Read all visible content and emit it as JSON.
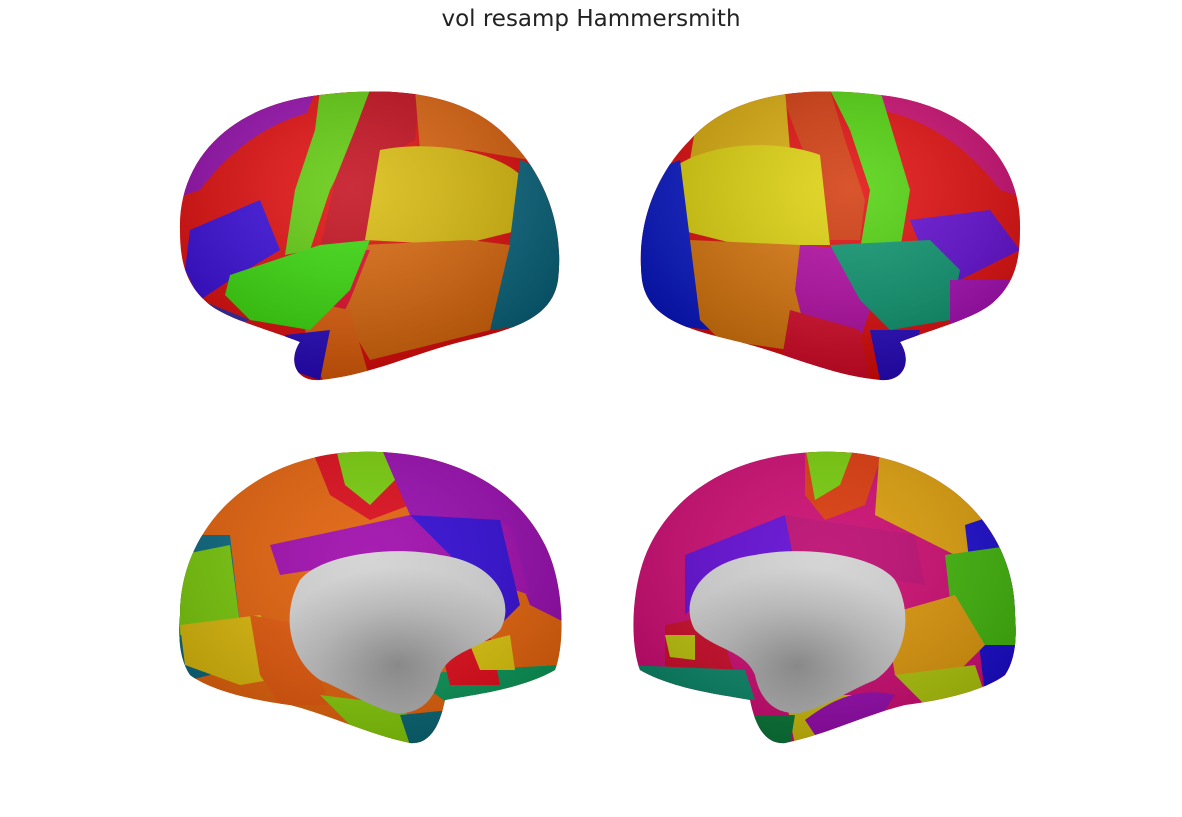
{
  "figure": {
    "title": "vol resamp Hammersmith"
  },
  "views": [
    {
      "id": "left-lateral"
    },
    {
      "id": "right-lateral"
    },
    {
      "id": "left-medial"
    },
    {
      "id": "right-medial"
    }
  ],
  "palette": {
    "purple": "#8f00a8",
    "magenta": "#c0006a",
    "red": "#e00000",
    "dark_red": "#c00010",
    "orange": "#e05a00",
    "dark_orange": "#d06a00",
    "gold": "#d8b000",
    "yellow": "#e0d000",
    "green": "#38d800",
    "lime": "#7ac800",
    "teal_green": "#009060",
    "teal": "#00607a",
    "blue": "#2000d0",
    "violet": "#5a00d0",
    "gray": "#b0b0b0"
  }
}
